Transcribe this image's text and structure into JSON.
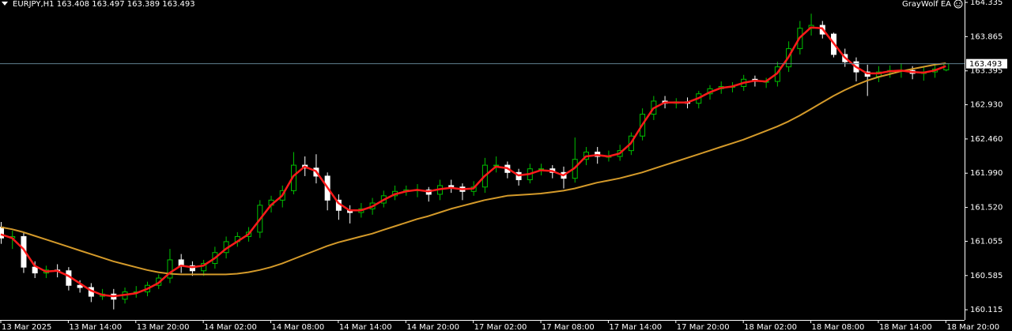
{
  "chart_data": {
    "type": "candlestick",
    "title": "EURJPY,H1  163.408 163.497 163.389 163.493",
    "expert": "GrayWolf EA",
    "categories": [
      "13 Mar 2025",
      null,
      null,
      null,
      null,
      null,
      "13 Mar 14:00",
      null,
      null,
      null,
      null,
      null,
      "13 Mar 20:00",
      null,
      null,
      null,
      null,
      null,
      "14 Mar 02:00",
      null,
      null,
      null,
      null,
      null,
      "14 Mar 08:00",
      null,
      null,
      null,
      null,
      null,
      "14 Mar 14:00",
      null,
      null,
      null,
      null,
      null,
      "14 Mar 20:00",
      null,
      null,
      null,
      null,
      null,
      "17 Mar 02:00",
      null,
      null,
      null,
      null,
      null,
      "17 Mar 08:00",
      null,
      null,
      null,
      null,
      null,
      "17 Mar 14:00",
      null,
      null,
      null,
      null,
      null,
      "17 Mar 20:00",
      null,
      null,
      null,
      null,
      null,
      "18 Mar 02:00",
      null,
      null,
      null,
      null,
      null,
      "18 Mar 08:00",
      null,
      null,
      null,
      null,
      null,
      "18 Mar 14:00",
      null,
      null,
      null,
      null,
      null,
      "18 Mar 20:00"
    ],
    "open": [
      161.25,
      161.1,
      161.12,
      160.7,
      160.62,
      160.66,
      160.65,
      160.45,
      160.42,
      160.3,
      160.33,
      160.26,
      160.36,
      160.36,
      160.45,
      160.55,
      160.8,
      160.72,
      160.65,
      160.75,
      160.9,
      161.05,
      161.12,
      161.18,
      161.55,
      161.62,
      161.75,
      162.1,
      162.06,
      161.95,
      161.62,
      161.48,
      161.45,
      161.5,
      161.58,
      161.68,
      161.74,
      161.76,
      161.76,
      161.7,
      161.82,
      161.8,
      161.74,
      161.8,
      162.1,
      162.1,
      162.0,
      161.9,
      162.05,
      162.05,
      162.0,
      161.92,
      162.18,
      162.28,
      162.22,
      162.22,
      162.3,
      162.5,
      162.8,
      162.98,
      162.95,
      162.97,
      162.95,
      163.08,
      163.15,
      163.18,
      163.18,
      163.28,
      163.25,
      163.25,
      163.45,
      163.7,
      163.98,
      164.02,
      163.9,
      163.62,
      163.52,
      163.38,
      163.32,
      163.38,
      163.4,
      163.4,
      163.36,
      163.38,
      163.408
    ],
    "high": [
      161.32,
      161.2,
      161.18,
      160.78,
      160.72,
      160.74,
      160.7,
      160.52,
      160.48,
      160.4,
      160.4,
      160.42,
      160.44,
      160.5,
      160.6,
      160.95,
      160.88,
      160.78,
      160.8,
      160.98,
      161.12,
      161.18,
      161.25,
      161.62,
      161.68,
      161.82,
      162.28,
      162.22,
      162.25,
      162.0,
      161.7,
      161.55,
      161.58,
      161.65,
      161.75,
      161.82,
      161.82,
      161.84,
      161.8,
      161.9,
      161.9,
      161.85,
      161.88,
      162.2,
      162.22,
      162.15,
      162.05,
      162.12,
      162.12,
      162.1,
      162.08,
      162.48,
      162.35,
      162.35,
      162.3,
      162.38,
      162.55,
      162.88,
      163.05,
      163.05,
      163.02,
      163.03,
      163.12,
      163.2,
      163.25,
      163.24,
      163.34,
      163.33,
      163.3,
      163.52,
      163.8,
      164.08,
      164.18,
      164.08,
      163.92,
      163.7,
      163.58,
      163.48,
      163.46,
      163.47,
      163.5,
      163.46,
      163.44,
      163.48,
      163.497
    ],
    "low": [
      161.02,
      160.95,
      160.62,
      160.55,
      160.55,
      160.56,
      160.38,
      160.35,
      160.22,
      160.25,
      160.12,
      160.2,
      160.28,
      160.3,
      160.4,
      160.48,
      160.62,
      160.58,
      160.58,
      160.68,
      160.82,
      160.98,
      161.05,
      161.1,
      161.45,
      161.52,
      161.7,
      161.95,
      161.85,
      161.48,
      161.35,
      161.3,
      161.38,
      161.42,
      161.52,
      161.62,
      161.68,
      161.66,
      161.6,
      161.62,
      161.72,
      161.62,
      161.68,
      161.72,
      162.0,
      161.92,
      161.82,
      161.85,
      161.96,
      161.92,
      161.78,
      161.86,
      162.1,
      162.12,
      162.15,
      162.16,
      162.24,
      162.44,
      162.72,
      162.88,
      162.88,
      162.88,
      162.88,
      163.0,
      163.08,
      163.1,
      163.12,
      163.18,
      163.16,
      163.18,
      163.38,
      163.62,
      163.88,
      163.84,
      163.58,
      163.45,
      163.25,
      163.05,
      163.24,
      163.3,
      163.3,
      163.28,
      163.26,
      163.3,
      163.389
    ],
    "close": [
      161.1,
      161.12,
      160.7,
      160.62,
      160.66,
      160.65,
      160.45,
      160.42,
      160.3,
      160.33,
      160.26,
      160.36,
      160.36,
      160.45,
      160.55,
      160.8,
      160.72,
      160.65,
      160.75,
      160.9,
      161.05,
      161.12,
      161.18,
      161.55,
      161.62,
      161.75,
      162.1,
      162.06,
      161.95,
      161.62,
      161.48,
      161.45,
      161.5,
      161.58,
      161.68,
      161.74,
      161.76,
      161.76,
      161.7,
      161.82,
      161.8,
      161.74,
      161.8,
      162.1,
      162.1,
      162.0,
      161.9,
      162.05,
      162.05,
      162.0,
      161.92,
      162.18,
      162.28,
      162.22,
      162.22,
      162.3,
      162.5,
      162.8,
      162.98,
      162.95,
      162.97,
      162.95,
      163.08,
      163.15,
      163.18,
      163.18,
      163.28,
      163.25,
      163.25,
      163.45,
      163.7,
      163.98,
      164.02,
      163.9,
      163.62,
      163.52,
      163.38,
      163.32,
      163.38,
      163.4,
      163.4,
      163.36,
      163.38,
      163.42,
      163.493
    ],
    "bull_color": "#00c000",
    "bear_color": "#ffffff",
    "lines": [
      {
        "color": "#d49a2a",
        "values": [
          161.25,
          161.22,
          161.18,
          161.13,
          161.08,
          161.03,
          160.98,
          160.93,
          160.88,
          160.83,
          160.78,
          160.74,
          160.7,
          160.66,
          160.63,
          160.61,
          160.6,
          160.6,
          160.6,
          160.6,
          160.6,
          160.61,
          160.63,
          160.66,
          160.7,
          160.75,
          160.81,
          160.87,
          160.93,
          160.99,
          161.04,
          161.08,
          161.12,
          161.16,
          161.21,
          161.26,
          161.31,
          161.36,
          161.4,
          161.45,
          161.5,
          161.54,
          161.58,
          161.62,
          161.65,
          161.68,
          161.69,
          161.7,
          161.71,
          161.73,
          161.75,
          161.78,
          161.82,
          161.86,
          161.89,
          161.92,
          161.96,
          162.0,
          162.05,
          162.1,
          162.15,
          162.2,
          162.25,
          162.3,
          162.35,
          162.4,
          162.45,
          162.51,
          162.57,
          162.63,
          162.7,
          162.78,
          162.87,
          162.96,
          163.05,
          163.13,
          163.2,
          163.26,
          163.31,
          163.35,
          163.39,
          163.42,
          163.45,
          163.48,
          163.5
        ]
      },
      {
        "color": "#ff1a1a",
        "values": [
          161.15,
          161.1,
          160.95,
          160.72,
          160.64,
          160.65,
          160.58,
          160.48,
          160.38,
          160.32,
          160.3,
          160.32,
          160.34,
          160.4,
          160.48,
          160.62,
          160.72,
          160.7,
          160.72,
          160.82,
          160.95,
          161.05,
          161.15,
          161.35,
          161.55,
          161.68,
          161.95,
          162.08,
          162.02,
          161.8,
          161.58,
          161.48,
          161.48,
          161.53,
          161.62,
          161.7,
          161.74,
          161.76,
          161.74,
          161.77,
          161.79,
          161.77,
          161.78,
          161.95,
          162.08,
          162.06,
          161.96,
          161.98,
          162.03,
          162.02,
          161.96,
          162.06,
          162.22,
          162.24,
          162.22,
          162.26,
          162.4,
          162.65,
          162.88,
          162.96,
          162.96,
          162.96,
          163.02,
          163.1,
          163.16,
          163.18,
          163.23,
          163.26,
          163.25,
          163.36,
          163.58,
          163.85,
          163.99,
          163.98,
          163.78,
          163.58,
          163.45,
          163.36,
          163.36,
          163.39,
          163.4,
          163.38,
          163.37,
          163.4,
          163.46
        ]
      }
    ],
    "current_price": 163.493,
    "current_price_color": "#5f7f90",
    "ylim": [
      159.975,
      164.368
    ],
    "yticks": [
      164.335,
      163.865,
      163.395,
      {
        "value": 162.93,
        "label": "162.930"
      },
      {
        "value": 162.46,
        "label": "162.460"
      },
      {
        "value": 161.99,
        "label": "161.990"
      },
      {
        "value": 161.52,
        "label": "161.520"
      },
      161.055,
      160.585,
      160.115
    ]
  }
}
